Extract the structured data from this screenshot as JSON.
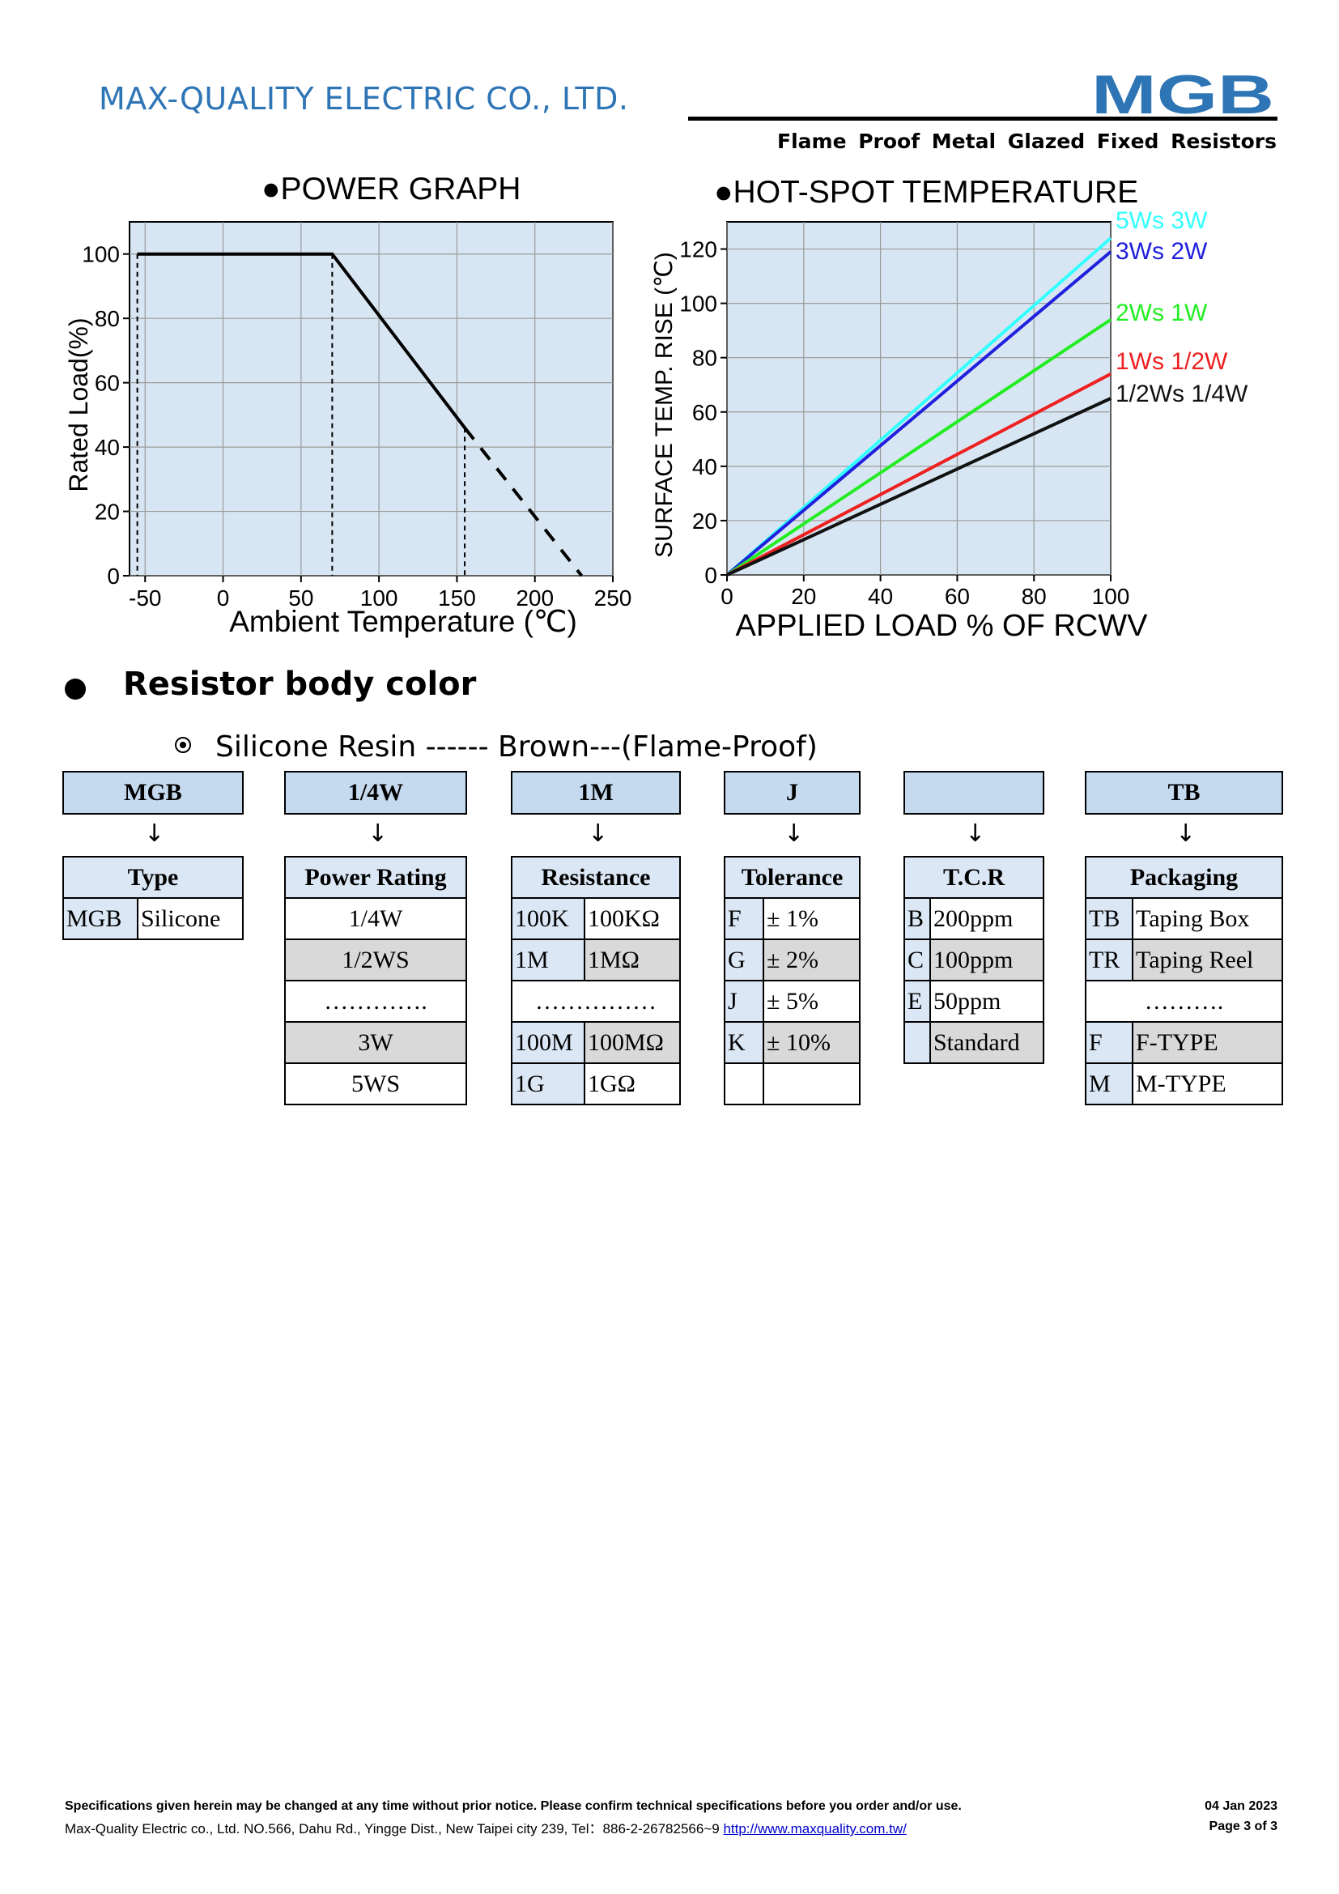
{
  "header": {
    "company": "MAX-QUALITY ELECTRIC CO., LTD.",
    "logo_text": "MGB",
    "subtitle": "Flame Proof Metal Glazed Fixed Resistors",
    "brand_color": "#2e75b6"
  },
  "power_graph": {
    "title": "●POWER GRAPH",
    "chart_data": {
      "type": "line",
      "xlabel": "Ambient Temperature (℃)",
      "ylabel": "Rated Load(%)",
      "xlim": [
        -60,
        250
      ],
      "ylim": [
        0,
        110
      ],
      "xticks": [
        "-50",
        "0",
        "50",
        "100",
        "150",
        "200",
        "250"
      ],
      "yticks": [
        "0",
        "20",
        "40",
        "60",
        "80",
        "100"
      ],
      "grid": true,
      "series": [
        {
          "style": "solid",
          "points": [
            [
              -55,
              100
            ],
            [
              70,
              100
            ],
            [
              155,
              46
            ]
          ]
        },
        {
          "style": "dashed",
          "points": [
            [
              155,
              46
            ],
            [
              230,
              0
            ]
          ]
        }
      ],
      "guides": [
        -55,
        70,
        155
      ]
    }
  },
  "hotspot_graph": {
    "title": "●HOT-SPOT TEMPERATURE",
    "chart_data": {
      "type": "line",
      "xlabel": "APPLIED LOAD % OF RCWV",
      "ylabel": "SURFACE TEMP. RISE (℃)",
      "xlim": [
        0,
        100
      ],
      "ylim": [
        0,
        130
      ],
      "xticks": [
        "0",
        "20",
        "40",
        "60",
        "80",
        "100"
      ],
      "yticks": [
        "0",
        "20",
        "40",
        "60",
        "80",
        "100",
        "120"
      ],
      "grid": true,
      "series": [
        {
          "name": "5Ws 3W",
          "color": "#33ffff",
          "x": [
            0,
            100
          ],
          "y": [
            0,
            124
          ]
        },
        {
          "name": "3Ws 2W",
          "color": "#2020dd",
          "x": [
            0,
            100
          ],
          "y": [
            0,
            119
          ]
        },
        {
          "name": "2Ws 1W",
          "color": "#22ee22",
          "x": [
            0,
            100
          ],
          "y": [
            0,
            94
          ]
        },
        {
          "name": "1Ws 1/2W",
          "color": "#ee2020",
          "x": [
            0,
            100
          ],
          "y": [
            0,
            74
          ]
        },
        {
          "name": "1/2Ws 1/4W",
          "color": "#111111",
          "x": [
            0,
            100
          ],
          "y": [
            0,
            65
          ]
        }
      ]
    }
  },
  "body_color": {
    "title": "Resistor body color",
    "resin": "Silicone Resin ------ Brown---(Flame-Proof)"
  },
  "code_boxes": [
    "MGB",
    "1/4W",
    "1M",
    "J",
    "",
    "TB"
  ],
  "arrow": "↓",
  "tables": {
    "type": {
      "header": "Type",
      "rows": [
        [
          "MGB",
          "Silicone"
        ]
      ]
    },
    "power": {
      "header": "Power Rating",
      "rows": [
        "1/4W",
        "1/2WS",
        "………….",
        "3W",
        "5WS"
      ]
    },
    "resistance": {
      "header": "Resistance",
      "rows": [
        [
          "100K",
          "100KΩ"
        ],
        [
          "1M",
          "1MΩ"
        ],
        [
          "……………",
          ""
        ],
        [
          "100M",
          "100MΩ"
        ],
        [
          "1G",
          "1GΩ"
        ]
      ]
    },
    "tolerance": {
      "header": "Tolerance",
      "rows": [
        [
          "F",
          "± 1%"
        ],
        [
          "G",
          "± 2%"
        ],
        [
          "J",
          "± 5%"
        ],
        [
          "K",
          "± 10%"
        ],
        [
          "",
          ""
        ]
      ]
    },
    "tcr": {
      "header": "T.C.R",
      "rows": [
        [
          "B",
          "200ppm"
        ],
        [
          "C",
          "100ppm"
        ],
        [
          "E",
          "50ppm"
        ],
        [
          "",
          "Standard"
        ]
      ]
    },
    "packaging": {
      "header": "Packaging",
      "rows": [
        [
          "TB",
          "Taping Box"
        ],
        [
          "TR",
          "Taping Reel"
        ],
        [
          "……….",
          ""
        ],
        [
          "F",
          "F-TYPE"
        ],
        [
          "M",
          "M-TYPE"
        ]
      ]
    }
  },
  "footer": {
    "notice": "Specifications given herein may be changed at any time without prior notice. Please confirm technical specifications before you order and/or use.",
    "address": "Max-Quality Electric co., Ltd. NO.566, Dahu Rd., Yingge Dist., New Taipei city 239, Tel：886-2-26782566~9",
    "url": "http://www.maxquality.com.tw/",
    "date": "04 Jan 2023",
    "page": "Page  3  of  3"
  }
}
